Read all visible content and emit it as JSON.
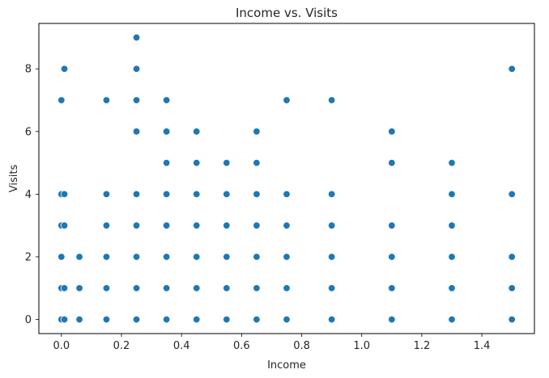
{
  "chart_data": {
    "type": "scatter",
    "title": "Income vs. Visits",
    "xlabel": "Income",
    "ylabel": "Visits",
    "xlim": [
      -0.075,
      1.575
    ],
    "ylim": [
      -0.45,
      9.45
    ],
    "xticks": [
      0.0,
      0.2,
      0.4,
      0.6,
      0.8,
      1.0,
      1.2,
      1.4
    ],
    "xtick_labels": [
      "0.0",
      "0.2",
      "0.4",
      "0.6",
      "0.8",
      "1.0",
      "1.2",
      "1.4"
    ],
    "yticks": [
      0,
      2,
      4,
      6,
      8
    ],
    "ytick_labels": [
      "0",
      "2",
      "4",
      "6",
      "8"
    ],
    "grid": false,
    "legend": "none",
    "color": "#1f77b4",
    "points": [
      [
        0.0,
        0
      ],
      [
        0.0,
        1
      ],
      [
        0.0,
        2
      ],
      [
        0.0,
        3
      ],
      [
        0.0,
        4
      ],
      [
        0.0,
        7
      ],
      [
        0.01,
        0
      ],
      [
        0.01,
        1
      ],
      [
        0.01,
        3
      ],
      [
        0.01,
        4
      ],
      [
        0.01,
        8
      ],
      [
        0.06,
        0
      ],
      [
        0.06,
        1
      ],
      [
        0.06,
        2
      ],
      [
        0.15,
        0
      ],
      [
        0.15,
        1
      ],
      [
        0.15,
        2
      ],
      [
        0.15,
        3
      ],
      [
        0.15,
        4
      ],
      [
        0.15,
        7
      ],
      [
        0.25,
        0
      ],
      [
        0.25,
        1
      ],
      [
        0.25,
        2
      ],
      [
        0.25,
        3
      ],
      [
        0.25,
        4
      ],
      [
        0.25,
        6
      ],
      [
        0.25,
        7
      ],
      [
        0.25,
        8
      ],
      [
        0.25,
        9
      ],
      [
        0.35,
        0
      ],
      [
        0.35,
        1
      ],
      [
        0.35,
        2
      ],
      [
        0.35,
        3
      ],
      [
        0.35,
        4
      ],
      [
        0.35,
        5
      ],
      [
        0.35,
        6
      ],
      [
        0.35,
        7
      ],
      [
        0.45,
        0
      ],
      [
        0.45,
        1
      ],
      [
        0.45,
        2
      ],
      [
        0.45,
        3
      ],
      [
        0.45,
        4
      ],
      [
        0.45,
        5
      ],
      [
        0.45,
        6
      ],
      [
        0.55,
        0
      ],
      [
        0.55,
        1
      ],
      [
        0.55,
        2
      ],
      [
        0.55,
        3
      ],
      [
        0.55,
        4
      ],
      [
        0.55,
        5
      ],
      [
        0.65,
        0
      ],
      [
        0.65,
        1
      ],
      [
        0.65,
        2
      ],
      [
        0.65,
        3
      ],
      [
        0.65,
        4
      ],
      [
        0.65,
        5
      ],
      [
        0.65,
        6
      ],
      [
        0.75,
        0
      ],
      [
        0.75,
        1
      ],
      [
        0.75,
        2
      ],
      [
        0.75,
        3
      ],
      [
        0.75,
        4
      ],
      [
        0.75,
        7
      ],
      [
        0.9,
        0
      ],
      [
        0.9,
        1
      ],
      [
        0.9,
        2
      ],
      [
        0.9,
        3
      ],
      [
        0.9,
        4
      ],
      [
        0.9,
        7
      ],
      [
        1.1,
        0
      ],
      [
        1.1,
        1
      ],
      [
        1.1,
        2
      ],
      [
        1.1,
        3
      ],
      [
        1.1,
        5
      ],
      [
        1.1,
        6
      ],
      [
        1.3,
        0
      ],
      [
        1.3,
        1
      ],
      [
        1.3,
        2
      ],
      [
        1.3,
        3
      ],
      [
        1.3,
        4
      ],
      [
        1.3,
        5
      ],
      [
        1.5,
        0
      ],
      [
        1.5,
        1
      ],
      [
        1.5,
        2
      ],
      [
        1.5,
        4
      ],
      [
        1.5,
        8
      ]
    ]
  }
}
